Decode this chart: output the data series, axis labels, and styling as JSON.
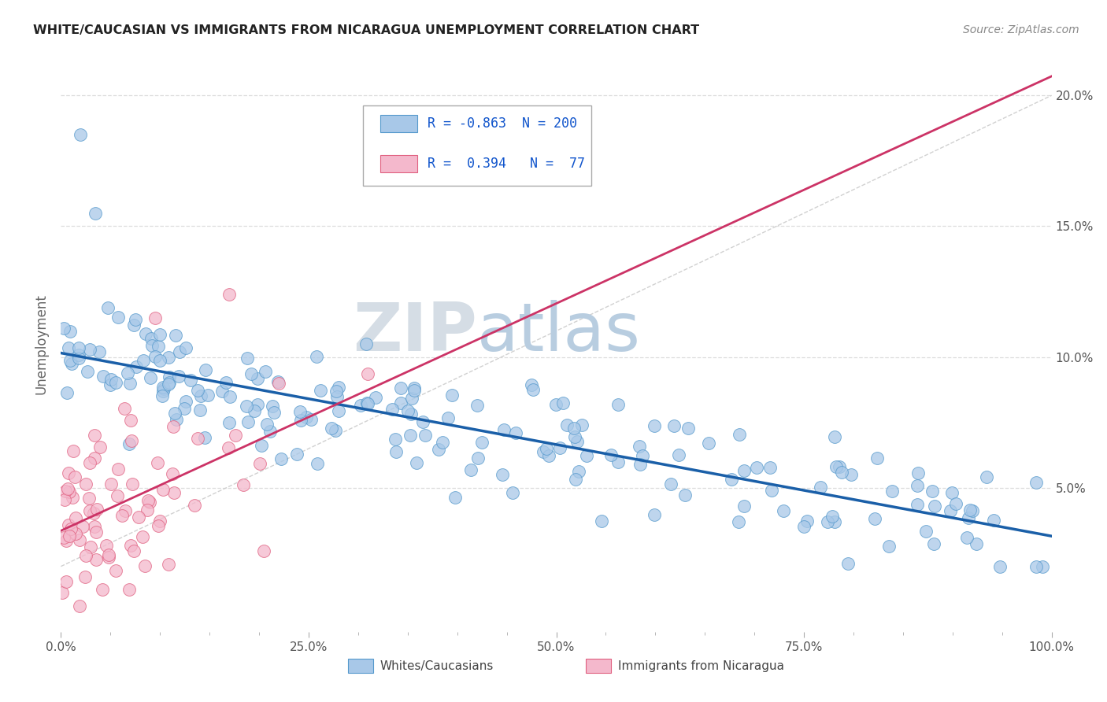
{
  "title": "WHITE/CAUCASIAN VS IMMIGRANTS FROM NICARAGUA UNEMPLOYMENT CORRELATION CHART",
  "source": "Source: ZipAtlas.com",
  "ylabel": "Unemployment",
  "legend_label1": "Whites/Caucasians",
  "legend_label2": "Immigrants from Nicaragua",
  "R1": "-0.863",
  "N1": "200",
  "R2": "0.394",
  "N2": "77",
  "blue_color": "#a8c8e8",
  "blue_edge_color": "#5599cc",
  "pink_color": "#f4b8cc",
  "pink_edge_color": "#e06080",
  "blue_line_color": "#1a5fa8",
  "pink_line_color": "#cc3366",
  "ref_line_color": "#cccccc",
  "watermark_zip_color": "#d0d8e0",
  "watermark_atlas_color": "#b8cce4",
  "background_color": "#ffffff",
  "grid_color": "#dddddd",
  "xlim": [
    0.0,
    1.0
  ],
  "ylim": [
    -0.005,
    0.215
  ],
  "seed": 123,
  "n_blue": 200,
  "n_pink": 77
}
